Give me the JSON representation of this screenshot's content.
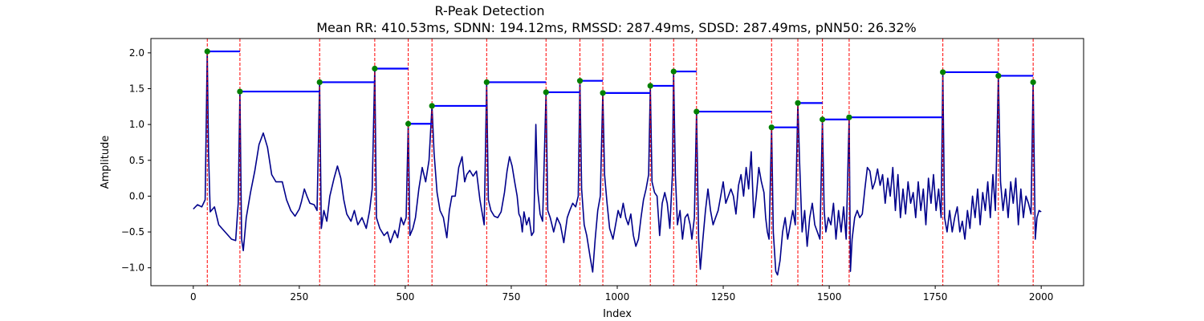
{
  "chart_data": {
    "type": "line",
    "title": "R-Peak Detection",
    "subtitle": "Mean RR: 410.53ms, SDNN: 194.12ms, RMSSD: 287.49ms, SDSD: 287.49ms, pNN50: 26.32%",
    "xlabel": "Index",
    "ylabel": "Amplitude",
    "xlim": [
      -100,
      2100
    ],
    "ylim": [
      -1.25,
      2.2
    ],
    "xticks": [
      0,
      250,
      500,
      750,
      1000,
      1250,
      1500,
      1750,
      2000
    ],
    "xtick_labels": [
      "0",
      "250",
      "500",
      "750",
      "1000",
      "1250",
      "1500",
      "1750",
      "2000"
    ],
    "yticks": [
      -1.0,
      -0.5,
      0.0,
      0.5,
      1.0,
      1.5,
      2.0
    ],
    "ytick_labels": [
      "−1.0",
      "−0.5",
      "0.0",
      "0.5",
      "1.0",
      "1.5",
      "2.0"
    ],
    "grid": false,
    "colors": {
      "signal": "#00008b",
      "peak_line": "#ff0000",
      "peak_marker": "#008000",
      "rr_bar": "#0000ff"
    },
    "signal_keypoints": [
      [
        0,
        -0.18
      ],
      [
        10,
        -0.12
      ],
      [
        20,
        -0.15
      ],
      [
        28,
        -0.05
      ],
      [
        33,
        2.02
      ],
      [
        36,
        0.6
      ],
      [
        40,
        -0.22
      ],
      [
        50,
        -0.15
      ],
      [
        60,
        -0.4
      ],
      [
        75,
        -0.5
      ],
      [
        90,
        -0.6
      ],
      [
        100,
        -0.62
      ],
      [
        106,
        -0.1
      ],
      [
        110,
        1.46
      ],
      [
        114,
        -0.6
      ],
      [
        118,
        -0.76
      ],
      [
        125,
        -0.3
      ],
      [
        135,
        0.05
      ],
      [
        145,
        0.35
      ],
      [
        155,
        0.72
      ],
      [
        165,
        0.88
      ],
      [
        175,
        0.68
      ],
      [
        185,
        0.3
      ],
      [
        195,
        0.2
      ],
      [
        210,
        0.2
      ],
      [
        220,
        -0.05
      ],
      [
        230,
        -0.2
      ],
      [
        240,
        -0.28
      ],
      [
        250,
        -0.18
      ],
      [
        255,
        -0.08
      ],
      [
        262,
        0.1
      ],
      [
        268,
        0.0
      ],
      [
        275,
        -0.1
      ],
      [
        285,
        -0.12
      ],
      [
        292,
        -0.2
      ],
      [
        298,
        1.59
      ],
      [
        302,
        -0.45
      ],
      [
        308,
        -0.2
      ],
      [
        315,
        -0.35
      ],
      [
        322,
        0.0
      ],
      [
        332,
        0.25
      ],
      [
        340,
        0.42
      ],
      [
        348,
        0.25
      ],
      [
        355,
        -0.05
      ],
      [
        362,
        -0.25
      ],
      [
        372,
        -0.35
      ],
      [
        380,
        -0.2
      ],
      [
        388,
        -0.4
      ],
      [
        398,
        -0.3
      ],
      [
        408,
        -0.45
      ],
      [
        416,
        -0.2
      ],
      [
        422,
        0.1
      ],
      [
        428,
        1.78
      ],
      [
        432,
        -0.3
      ],
      [
        440,
        -0.45
      ],
      [
        450,
        -0.55
      ],
      [
        458,
        -0.5
      ],
      [
        465,
        -0.65
      ],
      [
        475,
        -0.48
      ],
      [
        482,
        -0.58
      ],
      [
        490,
        -0.3
      ],
      [
        496,
        -0.4
      ],
      [
        502,
        -0.3
      ],
      [
        507,
        1.01
      ],
      [
        511,
        -0.55
      ],
      [
        518,
        -0.45
      ],
      [
        524,
        -0.3
      ],
      [
        532,
        0.1
      ],
      [
        540,
        0.4
      ],
      [
        548,
        0.2
      ],
      [
        556,
        0.5
      ],
      [
        563,
        1.26
      ],
      [
        568,
        0.6
      ],
      [
        575,
        0.05
      ],
      [
        582,
        -0.2
      ],
      [
        590,
        -0.3
      ],
      [
        598,
        -0.58
      ],
      [
        604,
        -0.2
      ],
      [
        610,
        0.0
      ],
      [
        618,
        0.0
      ],
      [
        626,
        0.4
      ],
      [
        634,
        0.55
      ],
      [
        640,
        0.2
      ],
      [
        645,
        0.3
      ],
      [
        652,
        0.36
      ],
      [
        660,
        0.28
      ],
      [
        668,
        0.35
      ],
      [
        676,
        -0.05
      ],
      [
        686,
        -0.4
      ],
      [
        692,
        1.59
      ],
      [
        696,
        -0.05
      ],
      [
        702,
        -0.2
      ],
      [
        710,
        -0.28
      ],
      [
        718,
        -0.3
      ],
      [
        726,
        -0.22
      ],
      [
        734,
        0.05
      ],
      [
        740,
        0.35
      ],
      [
        746,
        0.55
      ],
      [
        752,
        0.42
      ],
      [
        758,
        0.2
      ],
      [
        764,
        0.0
      ],
      [
        768,
        -0.25
      ],
      [
        772,
        -0.3
      ],
      [
        776,
        -0.5
      ],
      [
        780,
        -0.22
      ],
      [
        786,
        -0.4
      ],
      [
        792,
        -0.3
      ],
      [
        798,
        -0.55
      ],
      [
        803,
        -0.5
      ],
      [
        808,
        1.0
      ],
      [
        812,
        0.1
      ],
      [
        818,
        -0.25
      ],
      [
        824,
        -0.35
      ],
      [
        832,
        1.45
      ],
      [
        836,
        -0.2
      ],
      [
        842,
        -0.3
      ],
      [
        850,
        -0.5
      ],
      [
        858,
        -0.3
      ],
      [
        866,
        -0.4
      ],
      [
        874,
        -0.65
      ],
      [
        882,
        -0.3
      ],
      [
        888,
        -0.2
      ],
      [
        895,
        -0.1
      ],
      [
        902,
        -0.15
      ],
      [
        908,
        0.0
      ],
      [
        912,
        1.61
      ],
      [
        916,
        0.1
      ],
      [
        922,
        -0.4
      ],
      [
        928,
        -0.55
      ],
      [
        936,
        -0.85
      ],
      [
        942,
        -1.06
      ],
      [
        948,
        -0.6
      ],
      [
        954,
        -0.2
      ],
      [
        960,
        0.0
      ],
      [
        966,
        1.44
      ],
      [
        970,
        0.3
      ],
      [
        976,
        -0.1
      ],
      [
        982,
        -0.45
      ],
      [
        990,
        -0.6
      ],
      [
        996,
        -0.4
      ],
      [
        1002,
        -0.2
      ],
      [
        1008,
        -0.3
      ],
      [
        1014,
        -0.1
      ],
      [
        1020,
        -0.3
      ],
      [
        1026,
        -0.4
      ],
      [
        1032,
        -0.25
      ],
      [
        1038,
        -0.55
      ],
      [
        1044,
        -0.7
      ],
      [
        1050,
        -0.6
      ],
      [
        1056,
        -0.3
      ],
      [
        1062,
        -0.05
      ],
      [
        1068,
        0.1
      ],
      [
        1074,
        0.3
      ],
      [
        1078,
        1.54
      ],
      [
        1082,
        0.2
      ],
      [
        1088,
        0.05
      ],
      [
        1094,
        0.0
      ],
      [
        1100,
        -0.55
      ],
      [
        1106,
        -0.1
      ],
      [
        1112,
        0.05
      ],
      [
        1118,
        -0.1
      ],
      [
        1124,
        -0.45
      ],
      [
        1130,
        0.3
      ],
      [
        1133,
        1.74
      ],
      [
        1137,
        0.3
      ],
      [
        1142,
        -0.4
      ],
      [
        1148,
        -0.2
      ],
      [
        1154,
        -0.6
      ],
      [
        1160,
        -0.3
      ],
      [
        1166,
        -0.25
      ],
      [
        1172,
        -0.4
      ],
      [
        1176,
        -0.6
      ],
      [
        1182,
        -0.3
      ],
      [
        1187,
        1.18
      ],
      [
        1192,
        -0.6
      ],
      [
        1196,
        -1.02
      ],
      [
        1202,
        -0.6
      ],
      [
        1208,
        -0.2
      ],
      [
        1214,
        0.1
      ],
      [
        1220,
        -0.2
      ],
      [
        1226,
        -0.4
      ],
      [
        1232,
        -0.3
      ],
      [
        1238,
        -0.2
      ],
      [
        1244,
        0.0
      ],
      [
        1250,
        0.2
      ],
      [
        1256,
        -0.1
      ],
      [
        1262,
        0.0
      ],
      [
        1268,
        0.1
      ],
      [
        1274,
        0.0
      ],
      [
        1280,
        -0.25
      ],
      [
        1286,
        0.15
      ],
      [
        1292,
        0.3
      ],
      [
        1298,
        0.0
      ],
      [
        1304,
        0.4
      ],
      [
        1310,
        0.1
      ],
      [
        1316,
        0.62
      ],
      [
        1322,
        -0.3
      ],
      [
        1328,
        0.0
      ],
      [
        1334,
        0.4
      ],
      [
        1340,
        0.2
      ],
      [
        1346,
        0.05
      ],
      [
        1350,
        -0.3
      ],
      [
        1354,
        -0.5
      ],
      [
        1358,
        -0.6
      ],
      [
        1364,
        0.96
      ],
      [
        1368,
        -0.5
      ],
      [
        1374,
        -1.05
      ],
      [
        1378,
        -1.1
      ],
      [
        1384,
        -0.9
      ],
      [
        1390,
        -0.5
      ],
      [
        1396,
        -0.3
      ],
      [
        1402,
        -0.6
      ],
      [
        1408,
        -0.4
      ],
      [
        1414,
        -0.2
      ],
      [
        1420,
        -0.4
      ],
      [
        1426,
        1.3
      ],
      [
        1430,
        0.5
      ],
      [
        1436,
        -0.5
      ],
      [
        1442,
        -0.2
      ],
      [
        1448,
        -0.7
      ],
      [
        1454,
        -0.3
      ],
      [
        1460,
        -0.1
      ],
      [
        1466,
        -0.4
      ],
      [
        1472,
        -0.5
      ],
      [
        1478,
        -0.6
      ],
      [
        1484,
        1.07
      ],
      [
        1488,
        -0.2
      ],
      [
        1492,
        -0.5
      ],
      [
        1498,
        -0.3
      ],
      [
        1504,
        -0.4
      ],
      [
        1510,
        -0.1
      ],
      [
        1516,
        -0.6
      ],
      [
        1522,
        -0.2
      ],
      [
        1528,
        -0.5
      ],
      [
        1534,
        -0.15
      ],
      [
        1540,
        -0.6
      ],
      [
        1547,
        1.1
      ],
      [
        1550,
        -1.05
      ],
      [
        1554,
        -0.6
      ],
      [
        1560,
        -0.3
      ],
      [
        1566,
        -0.2
      ],
      [
        1572,
        -0.3
      ],
      [
        1578,
        -0.25
      ],
      [
        1584,
        0.1
      ],
      [
        1590,
        0.4
      ],
      [
        1596,
        0.35
      ],
      [
        1602,
        0.1
      ],
      [
        1608,
        0.2
      ],
      [
        1614,
        0.38
      ],
      [
        1620,
        0.15
      ],
      [
        1626,
        0.3
      ],
      [
        1632,
        -0.1
      ],
      [
        1638,
        0.25
      ],
      [
        1644,
        0.0
      ],
      [
        1650,
        0.4
      ],
      [
        1656,
        -0.2
      ],
      [
        1662,
        0.3
      ],
      [
        1668,
        -0.3
      ],
      [
        1674,
        0.1
      ],
      [
        1680,
        -0.25
      ],
      [
        1686,
        0.2
      ],
      [
        1692,
        -0.1
      ],
      [
        1698,
        0.05
      ],
      [
        1704,
        -0.3
      ],
      [
        1710,
        0.2
      ],
      [
        1716,
        -0.2
      ],
      [
        1722,
        0.1
      ],
      [
        1728,
        -0.4
      ],
      [
        1734,
        0.25
      ],
      [
        1740,
        -0.1
      ],
      [
        1746,
        0.3
      ],
      [
        1752,
        -0.2
      ],
      [
        1758,
        0.1
      ],
      [
        1764,
        -0.3
      ],
      [
        1768,
        1.73
      ],
      [
        1772,
        -0.3
      ],
      [
        1778,
        -0.5
      ],
      [
        1784,
        -0.2
      ],
      [
        1790,
        -0.5
      ],
      [
        1796,
        -0.3
      ],
      [
        1802,
        -0.15
      ],
      [
        1808,
        -0.5
      ],
      [
        1814,
        -0.35
      ],
      [
        1820,
        -0.6
      ],
      [
        1826,
        -0.2
      ],
      [
        1832,
        -0.45
      ],
      [
        1838,
        0.0
      ],
      [
        1844,
        -0.3
      ],
      [
        1850,
        0.1
      ],
      [
        1856,
        -0.4
      ],
      [
        1862,
        0.05
      ],
      [
        1868,
        -0.2
      ],
      [
        1874,
        0.2
      ],
      [
        1880,
        -0.3
      ],
      [
        1886,
        0.3
      ],
      [
        1892,
        -0.2
      ],
      [
        1899,
        1.68
      ],
      [
        1904,
        0.2
      ],
      [
        1910,
        -0.2
      ],
      [
        1916,
        0.1
      ],
      [
        1922,
        -0.3
      ],
      [
        1928,
        0.2
      ],
      [
        1934,
        -0.1
      ],
      [
        1940,
        0.25
      ],
      [
        1946,
        -0.4
      ],
      [
        1952,
        0.1
      ],
      [
        1958,
        -0.3
      ],
      [
        1964,
        0.0
      ],
      [
        1970,
        -0.1
      ],
      [
        1976,
        -0.25
      ],
      [
        1981,
        1.59
      ],
      [
        1986,
        -0.6
      ],
      [
        1990,
        -0.3
      ],
      [
        1995,
        -0.2
      ],
      [
        2000,
        -0.22
      ]
    ],
    "peaks": [
      {
        "x": 33,
        "y": 2.02
      },
      {
        "x": 110,
        "y": 1.46
      },
      {
        "x": 298,
        "y": 1.59
      },
      {
        "x": 428,
        "y": 1.78
      },
      {
        "x": 507,
        "y": 1.01
      },
      {
        "x": 563,
        "y": 1.26
      },
      {
        "x": 692,
        "y": 1.59
      },
      {
        "x": 832,
        "y": 1.45
      },
      {
        "x": 912,
        "y": 1.61
      },
      {
        "x": 966,
        "y": 1.44
      },
      {
        "x": 1078,
        "y": 1.54
      },
      {
        "x": 1133,
        "y": 1.74
      },
      {
        "x": 1187,
        "y": 1.18
      },
      {
        "x": 1364,
        "y": 0.96
      },
      {
        "x": 1426,
        "y": 1.3
      },
      {
        "x": 1484,
        "y": 1.07
      },
      {
        "x": 1547,
        "y": 1.1
      },
      {
        "x": 1768,
        "y": 1.73
      },
      {
        "x": 1899,
        "y": 1.68
      },
      {
        "x": 1981,
        "y": 1.59
      }
    ]
  }
}
